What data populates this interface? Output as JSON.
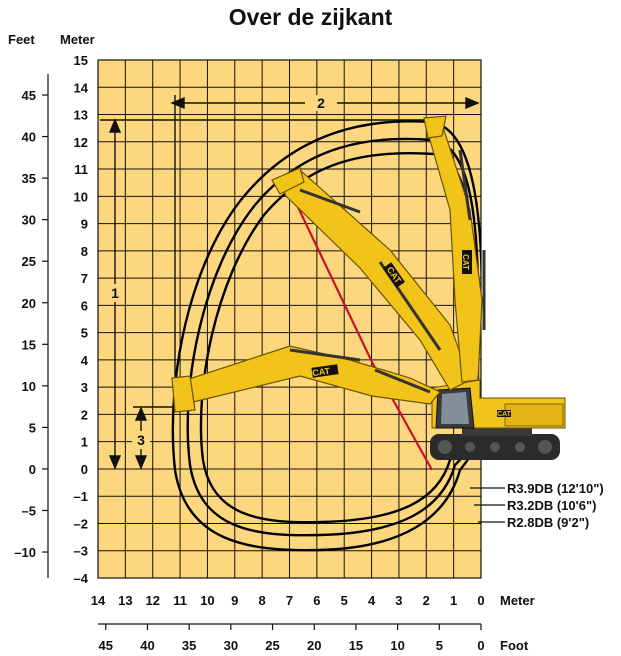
{
  "title": "Over de zijkant",
  "headers": {
    "feet": "Feet",
    "meter": "Meter",
    "meter_bottom": "Meter",
    "foot_bottom": "Foot"
  },
  "meter_y_ticks": [
    "15",
    "14",
    "13",
    "12",
    "11",
    "10",
    "9",
    "8",
    "7",
    "6",
    "5",
    "4",
    "3",
    "2",
    "1",
    "0",
    "–1",
    "–2",
    "–3",
    "–4"
  ],
  "feet_y_ticks": [
    "45",
    "40",
    "35",
    "30",
    "25",
    "20",
    "15",
    "10",
    "5",
    "0",
    "–5",
    "–10"
  ],
  "meter_x_ticks": [
    "14",
    "13",
    "12",
    "11",
    "10",
    "9",
    "8",
    "7",
    "6",
    "5",
    "4",
    "3",
    "2",
    "1",
    "0"
  ],
  "foot_x_ticks": [
    "45",
    "40",
    "35",
    "30",
    "25",
    "20",
    "15",
    "10",
    "5",
    "0"
  ],
  "dimension_labels": {
    "reach": "2",
    "height": "1",
    "depth": "3"
  },
  "boom_options": [
    {
      "label": "R3.9DB (12'10\")"
    },
    {
      "label": "R3.2DB (10'6\")"
    },
    {
      "label": "R2.8DB (9'2\")"
    }
  ],
  "brand": "CAT",
  "colors": {
    "grid_fill": "#fdd77d",
    "machine": "#f2c318",
    "guide_line": "#c8102e",
    "envelope": "#000000"
  }
}
